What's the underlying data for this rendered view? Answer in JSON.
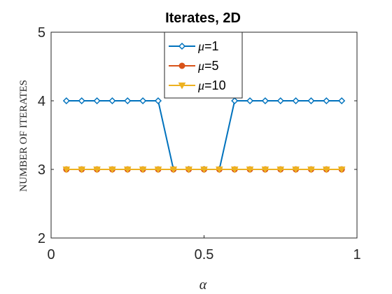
{
  "chart_data": {
    "type": "line",
    "title": "Iterates, 2D",
    "xlabel": "α",
    "ylabel": "NUMBER OF ITERATES",
    "xlim": [
      0,
      1
    ],
    "ylim": [
      2,
      5
    ],
    "xticks": [
      0,
      0.5,
      1
    ],
    "xtick_labels": [
      "0",
      "0.5",
      "1"
    ],
    "yticks": [
      2,
      3,
      4,
      5
    ],
    "ytick_labels": [
      "2",
      "3",
      "4",
      "5"
    ],
    "grid": false,
    "legend_position": "top-center",
    "x": [
      0.05,
      0.1,
      0.15,
      0.2,
      0.25,
      0.3,
      0.35,
      0.4,
      0.45,
      0.5,
      0.55,
      0.6,
      0.65,
      0.7,
      0.75,
      0.8,
      0.85,
      0.9,
      0.95
    ],
    "series": [
      {
        "name": "μ=1",
        "legend_symbol": "μ",
        "legend_value": "=1",
        "color": "#0072BD",
        "marker": "diamond",
        "values": [
          4,
          4,
          4,
          4,
          4,
          4,
          4,
          3,
          3,
          3,
          3,
          4,
          4,
          4,
          4,
          4,
          4,
          4,
          4
        ]
      },
      {
        "name": "μ=5",
        "legend_symbol": "μ",
        "legend_value": "=5",
        "color": "#D95319",
        "marker": "circle",
        "values": [
          3,
          3,
          3,
          3,
          3,
          3,
          3,
          3,
          3,
          3,
          3,
          3,
          3,
          3,
          3,
          3,
          3,
          3,
          3
        ]
      },
      {
        "name": "μ=10",
        "legend_symbol": "μ",
        "legend_value": "=10",
        "color": "#EDB120",
        "marker": "triangle-down",
        "values": [
          3,
          3,
          3,
          3,
          3,
          3,
          3,
          3,
          3,
          3,
          3,
          3,
          3,
          3,
          3,
          3,
          3,
          3,
          3
        ]
      }
    ]
  }
}
